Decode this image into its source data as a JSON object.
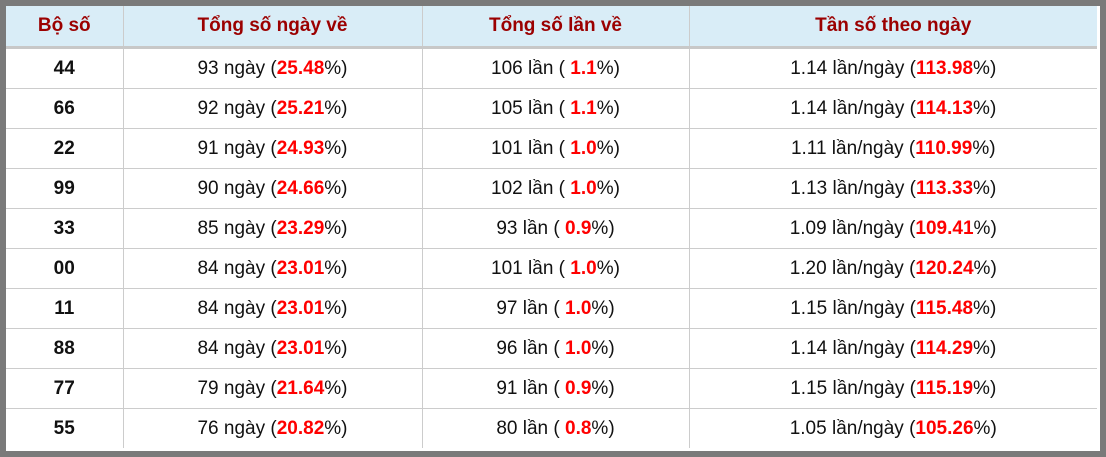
{
  "headers": [
    "Bộ số",
    "Tổng số ngày về",
    "Tổng số lần về",
    "Tần số theo ngày"
  ],
  "accent_color": "#ff0000",
  "header_color": "#9b0000",
  "rows": [
    {
      "num": "44",
      "days": "93",
      "days_pct": "25.48",
      "times": "106",
      "times_pct": "1.1",
      "freq": "1.14",
      "freq_pct": "113.98"
    },
    {
      "num": "66",
      "days": "92",
      "days_pct": "25.21",
      "times": "105",
      "times_pct": "1.1",
      "freq": "1.14",
      "freq_pct": "114.13"
    },
    {
      "num": "22",
      "days": "91",
      "days_pct": "24.93",
      "times": "101",
      "times_pct": "1.0",
      "freq": "1.11",
      "freq_pct": "110.99"
    },
    {
      "num": "99",
      "days": "90",
      "days_pct": "24.66",
      "times": "102",
      "times_pct": "1.0",
      "freq": "1.13",
      "freq_pct": "113.33"
    },
    {
      "num": "33",
      "days": "85",
      "days_pct": "23.29",
      "times": "93",
      "times_pct": "0.9",
      "freq": "1.09",
      "freq_pct": "109.41"
    },
    {
      "num": "00",
      "days": "84",
      "days_pct": "23.01",
      "times": "101",
      "times_pct": "1.0",
      "freq": "1.20",
      "freq_pct": "120.24"
    },
    {
      "num": "11",
      "days": "84",
      "days_pct": "23.01",
      "times": "97",
      "times_pct": "1.0",
      "freq": "1.15",
      "freq_pct": "115.48"
    },
    {
      "num": "88",
      "days": "84",
      "days_pct": "23.01",
      "times": "96",
      "times_pct": "1.0",
      "freq": "1.14",
      "freq_pct": "114.29"
    },
    {
      "num": "77",
      "days": "79",
      "days_pct": "21.64",
      "times": "91",
      "times_pct": "0.9",
      "freq": "1.15",
      "freq_pct": "115.19"
    },
    {
      "num": "55",
      "days": "76",
      "days_pct": "20.82",
      "times": "80",
      "times_pct": "0.8",
      "freq": "1.05",
      "freq_pct": "105.26"
    }
  ],
  "units": {
    "days": "ngày",
    "times": "lần",
    "freq": "lần/ngày",
    "pct": "%"
  }
}
